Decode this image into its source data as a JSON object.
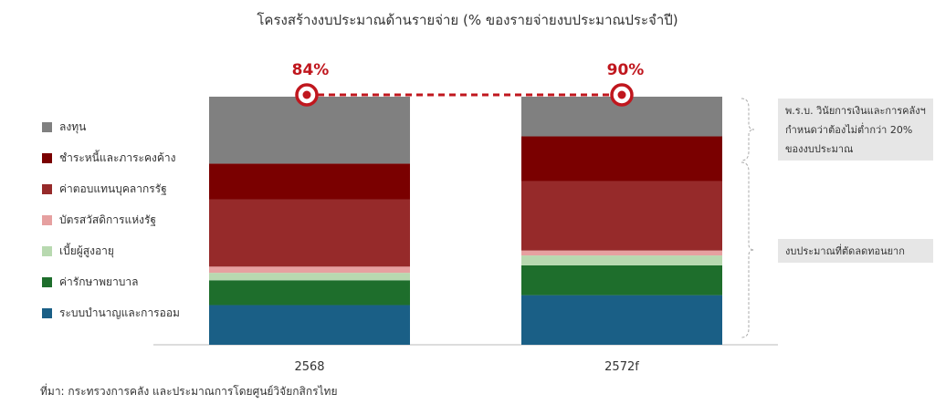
{
  "chart_data": {
    "type": "bar",
    "stacked": true,
    "title": "โครงสร้างงบประมาณด้านรายจ่าย (% ของรายจ่ายงบประมาณประจำปี)",
    "categories": [
      "2568",
      "2572f"
    ],
    "ylim": [
      0,
      100
    ],
    "series": [
      {
        "name": "ระบบบำนาญและการออม",
        "color": "#1a5f86",
        "values": [
          16,
          20
        ]
      },
      {
        "name": "ค่ารักษาพยาบาล",
        "color": "#1e6e2c",
        "values": [
          10,
          12
        ]
      },
      {
        "name": "เบี้ยผู้สูงอายุ",
        "color": "#b8d9b0",
        "values": [
          3,
          4
        ]
      },
      {
        "name": "บัตรสวัสดิการแห่งรัฐ",
        "color": "#e6a0a0",
        "values": [
          2.5,
          2
        ]
      },
      {
        "name": "ค่าตอบแทนบุคลากรรัฐ",
        "color": "#962a2a",
        "values": [
          27,
          28
        ]
      },
      {
        "name": "ชำระหนี้และภาระคงค้าง",
        "color": "#7a0000",
        "values": [
          14.5,
          18
        ]
      },
      {
        "name": "ลงทุน",
        "color": "#808080",
        "values": [
          27,
          16
        ]
      }
    ],
    "line_series": {
      "values": [
        84,
        90
      ],
      "labels": [
        "84%",
        "90%"
      ],
      "color": "#c0171e",
      "style": "dashed"
    },
    "annotations": [
      "พ.ร.บ. วินัยการเงินและการคลังฯ กำหนดว่าต้องไม่ต่ำกว่า 20% ของงบประมาณ",
      "งบประมาณที่ตัดลดทอนยาก"
    ],
    "legend_placement": "left",
    "grid": false
  },
  "source": "ที่มา: กระทรวงการคลัง และประมาณการโดยศูนย์วิจัยกสิกรไทย"
}
